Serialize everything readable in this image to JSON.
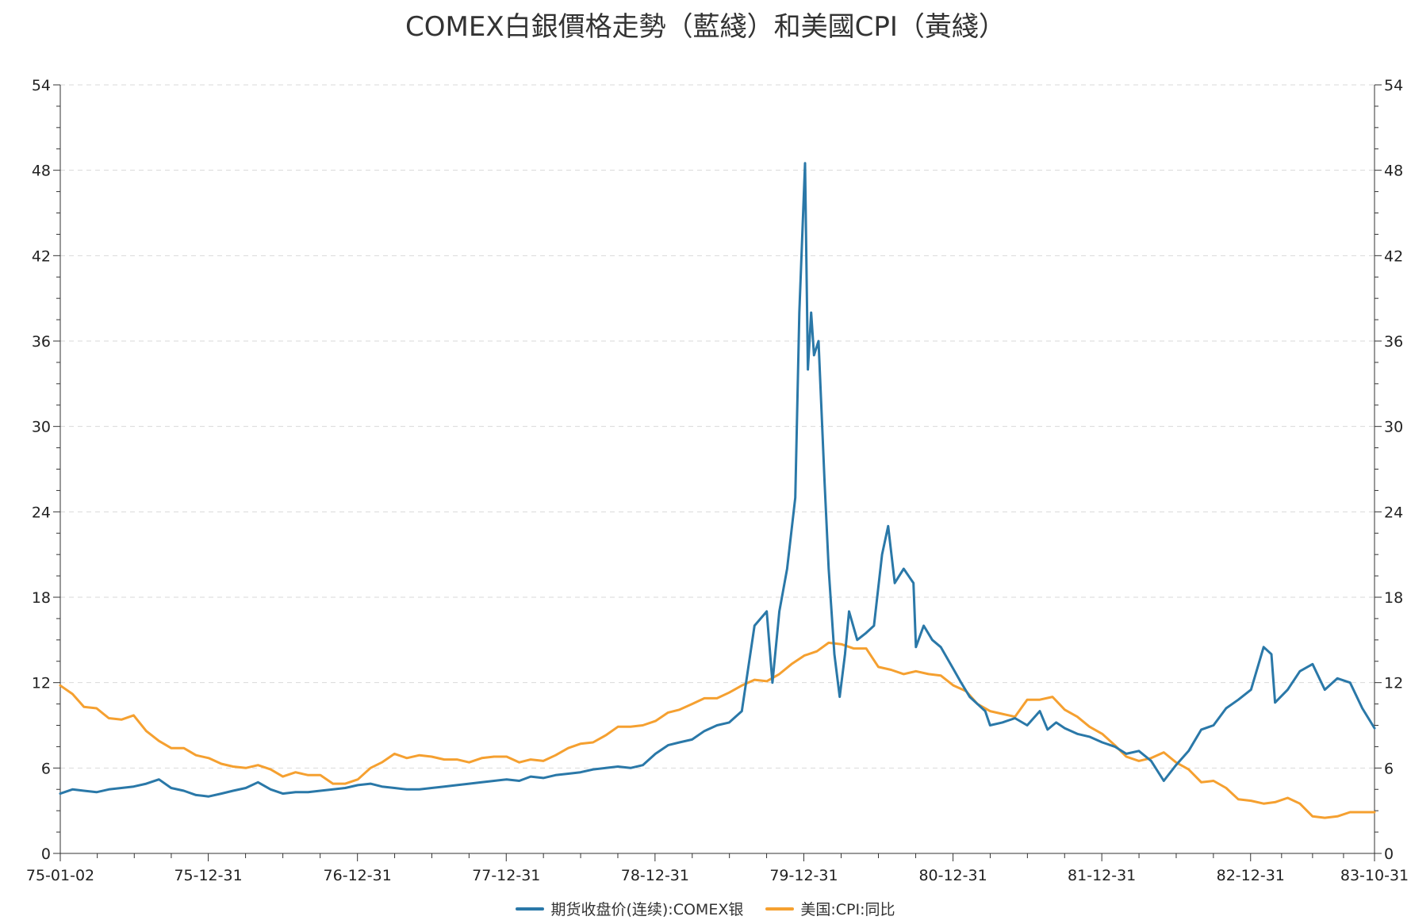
{
  "chart_data": {
    "type": "line",
    "title": "COMEX白銀價格走勢（藍綫）和美國CPI（黃綫）",
    "x_tick_labels": [
      "75-01-02",
      "75-12-31",
      "76-12-31",
      "77-12-31",
      "78-12-31",
      "79-12-31",
      "80-12-31",
      "81-12-31",
      "82-12-31",
      "83-10-31"
    ],
    "x_range": [
      "1975-01-02",
      "1983-10-31"
    ],
    "y_left": {
      "range": [
        0,
        54
      ],
      "ticks": [
        "0",
        "6",
        "12",
        "18",
        "24",
        "30",
        "36",
        "42",
        "48",
        "54"
      ]
    },
    "y_right": {
      "range": [
        0,
        54
      ],
      "ticks": [
        "0",
        "6",
        "12",
        "18",
        "24",
        "30",
        "36",
        "42",
        "48",
        "54"
      ]
    },
    "grid": "horizontal dashed",
    "legend_position": "bottom-center",
    "series": [
      {
        "name": "期货收盘价(连续):COMEX银",
        "color": "#2a78a8",
        "axis": "left",
        "points": [
          [
            "1975-01-02",
            4.2
          ],
          [
            "1975-02-01",
            4.5
          ],
          [
            "1975-03-01",
            4.4
          ],
          [
            "1975-04-01",
            4.3
          ],
          [
            "1975-05-01",
            4.5
          ],
          [
            "1975-06-01",
            4.6
          ],
          [
            "1975-07-01",
            4.7
          ],
          [
            "1975-08-01",
            4.9
          ],
          [
            "1975-09-01",
            5.2
          ],
          [
            "1975-10-01",
            4.6
          ],
          [
            "1975-11-01",
            4.4
          ],
          [
            "1975-12-01",
            4.1
          ],
          [
            "1976-01-01",
            4.0
          ],
          [
            "1976-02-01",
            4.2
          ],
          [
            "1976-03-01",
            4.4
          ],
          [
            "1976-04-01",
            4.6
          ],
          [
            "1976-05-01",
            5.0
          ],
          [
            "1976-06-01",
            4.5
          ],
          [
            "1976-07-01",
            4.2
          ],
          [
            "1976-08-01",
            4.3
          ],
          [
            "1976-09-01",
            4.3
          ],
          [
            "1976-10-01",
            4.4
          ],
          [
            "1976-11-01",
            4.5
          ],
          [
            "1976-12-01",
            4.6
          ],
          [
            "1977-01-01",
            4.8
          ],
          [
            "1977-02-01",
            4.9
          ],
          [
            "1977-03-01",
            4.7
          ],
          [
            "1977-04-01",
            4.6
          ],
          [
            "1977-05-01",
            4.5
          ],
          [
            "1977-06-01",
            4.5
          ],
          [
            "1977-07-01",
            4.6
          ],
          [
            "1977-08-01",
            4.7
          ],
          [
            "1977-09-01",
            4.8
          ],
          [
            "1977-10-01",
            4.9
          ],
          [
            "1977-11-01",
            5.0
          ],
          [
            "1977-12-01",
            5.1
          ],
          [
            "1978-01-01",
            5.2
          ],
          [
            "1978-02-01",
            5.1
          ],
          [
            "1978-03-01",
            5.4
          ],
          [
            "1978-04-01",
            5.3
          ],
          [
            "1978-05-01",
            5.5
          ],
          [
            "1978-06-01",
            5.6
          ],
          [
            "1978-07-01",
            5.7
          ],
          [
            "1978-08-01",
            5.9
          ],
          [
            "1978-09-01",
            6.0
          ],
          [
            "1978-10-01",
            6.1
          ],
          [
            "1978-11-01",
            6.0
          ],
          [
            "1978-12-01",
            6.2
          ],
          [
            "1979-01-01",
            7.0
          ],
          [
            "1979-02-01",
            7.6
          ],
          [
            "1979-03-01",
            7.8
          ],
          [
            "1979-04-01",
            8.0
          ],
          [
            "1979-05-01",
            8.6
          ],
          [
            "1979-06-01",
            9.0
          ],
          [
            "1979-07-01",
            9.2
          ],
          [
            "1979-08-01",
            10.0
          ],
          [
            "1979-09-01",
            16.0
          ],
          [
            "1979-10-01",
            17.0
          ],
          [
            "1979-10-15",
            12.0
          ],
          [
            "1979-11-01",
            17.0
          ],
          [
            "1979-11-20",
            20.0
          ],
          [
            "1979-12-10",
            25.0
          ],
          [
            "1979-12-20",
            38.0
          ],
          [
            "1980-01-03",
            48.5
          ],
          [
            "1980-01-10",
            34.0
          ],
          [
            "1980-01-18",
            38.0
          ],
          [
            "1980-01-25",
            35.0
          ],
          [
            "1980-02-05",
            36.0
          ],
          [
            "1980-02-20",
            26.0
          ],
          [
            "1980-03-01",
            20.0
          ],
          [
            "1980-03-15",
            14.0
          ],
          [
            "1980-03-28",
            11.0
          ],
          [
            "1980-04-10",
            14.0
          ],
          [
            "1980-04-20",
            17.0
          ],
          [
            "1980-05-10",
            15.0
          ],
          [
            "1980-06-01",
            15.5
          ],
          [
            "1980-06-20",
            16.0
          ],
          [
            "1980-07-10",
            21.0
          ],
          [
            "1980-07-25",
            23.0
          ],
          [
            "1980-08-10",
            19.0
          ],
          [
            "1980-09-01",
            20.0
          ],
          [
            "1980-09-25",
            19.0
          ],
          [
            "1980-10-01",
            14.5
          ],
          [
            "1980-10-20",
            16.0
          ],
          [
            "1980-11-10",
            15.0
          ],
          [
            "1980-12-01",
            14.5
          ],
          [
            "1980-12-31",
            13.0
          ],
          [
            "1981-01-20",
            12.0
          ],
          [
            "1981-02-10",
            11.0
          ],
          [
            "1981-03-01",
            10.5
          ],
          [
            "1981-03-20",
            10.0
          ],
          [
            "1981-04-01",
            9.0
          ],
          [
            "1981-05-01",
            9.2
          ],
          [
            "1981-06-01",
            9.5
          ],
          [
            "1981-07-01",
            9.0
          ],
          [
            "1981-08-01",
            10.0
          ],
          [
            "1981-08-20",
            8.7
          ],
          [
            "1981-09-10",
            9.2
          ],
          [
            "1981-10-01",
            8.8
          ],
          [
            "1981-11-01",
            8.4
          ],
          [
            "1981-12-01",
            8.2
          ],
          [
            "1982-01-01",
            7.8
          ],
          [
            "1982-02-01",
            7.5
          ],
          [
            "1982-03-01",
            7.0
          ],
          [
            "1982-04-01",
            7.2
          ],
          [
            "1982-05-01",
            6.5
          ],
          [
            "1982-06-01",
            5.1
          ],
          [
            "1982-07-01",
            6.2
          ],
          [
            "1982-08-01",
            7.2
          ],
          [
            "1982-09-01",
            8.7
          ],
          [
            "1982-10-01",
            9.0
          ],
          [
            "1982-11-01",
            10.2
          ],
          [
            "1982-12-01",
            10.8
          ],
          [
            "1983-01-01",
            11.5
          ],
          [
            "1983-02-01",
            14.5
          ],
          [
            "1983-02-20",
            14.0
          ],
          [
            "1983-03-01",
            10.6
          ],
          [
            "1983-04-01",
            11.5
          ],
          [
            "1983-05-01",
            12.8
          ],
          [
            "1983-06-01",
            13.3
          ],
          [
            "1983-07-01",
            11.5
          ],
          [
            "1983-08-01",
            12.3
          ],
          [
            "1983-09-01",
            12.0
          ],
          [
            "1983-10-01",
            10.2
          ],
          [
            "1983-10-31",
            8.8
          ]
        ]
      },
      {
        "name": "美国:CPI:同比",
        "color": "#f5a030",
        "axis": "right",
        "points": [
          [
            "1975-01-02",
            11.8
          ],
          [
            "1975-02-01",
            11.2
          ],
          [
            "1975-03-01",
            10.3
          ],
          [
            "1975-04-01",
            10.2
          ],
          [
            "1975-05-01",
            9.5
          ],
          [
            "1975-06-01",
            9.4
          ],
          [
            "1975-07-01",
            9.7
          ],
          [
            "1975-08-01",
            8.6
          ],
          [
            "1975-09-01",
            7.9
          ],
          [
            "1975-10-01",
            7.4
          ],
          [
            "1975-11-01",
            7.4
          ],
          [
            "1975-12-01",
            6.9
          ],
          [
            "1976-01-01",
            6.7
          ],
          [
            "1976-02-01",
            6.3
          ],
          [
            "1976-03-01",
            6.1
          ],
          [
            "1976-04-01",
            6.0
          ],
          [
            "1976-05-01",
            6.2
          ],
          [
            "1976-06-01",
            5.9
          ],
          [
            "1976-07-01",
            5.4
          ],
          [
            "1976-08-01",
            5.7
          ],
          [
            "1976-09-01",
            5.5
          ],
          [
            "1976-10-01",
            5.5
          ],
          [
            "1976-11-01",
            4.9
          ],
          [
            "1976-12-01",
            4.9
          ],
          [
            "1977-01-01",
            5.2
          ],
          [
            "1977-02-01",
            6.0
          ],
          [
            "1977-03-01",
            6.4
          ],
          [
            "1977-04-01",
            7.0
          ],
          [
            "1977-05-01",
            6.7
          ],
          [
            "1977-06-01",
            6.9
          ],
          [
            "1977-07-01",
            6.8
          ],
          [
            "1977-08-01",
            6.6
          ],
          [
            "1977-09-01",
            6.6
          ],
          [
            "1977-10-01",
            6.4
          ],
          [
            "1977-11-01",
            6.7
          ],
          [
            "1977-12-01",
            6.8
          ],
          [
            "1978-01-01",
            6.8
          ],
          [
            "1978-02-01",
            6.4
          ],
          [
            "1978-03-01",
            6.6
          ],
          [
            "1978-04-01",
            6.5
          ],
          [
            "1978-05-01",
            6.9
          ],
          [
            "1978-06-01",
            7.4
          ],
          [
            "1978-07-01",
            7.7
          ],
          [
            "1978-08-01",
            7.8
          ],
          [
            "1978-09-01",
            8.3
          ],
          [
            "1978-10-01",
            8.9
          ],
          [
            "1978-11-01",
            8.9
          ],
          [
            "1978-12-01",
            9.0
          ],
          [
            "1979-01-01",
            9.3
          ],
          [
            "1979-02-01",
            9.9
          ],
          [
            "1979-03-01",
            10.1
          ],
          [
            "1979-04-01",
            10.5
          ],
          [
            "1979-05-01",
            10.9
          ],
          [
            "1979-06-01",
            10.9
          ],
          [
            "1979-07-01",
            11.3
          ],
          [
            "1979-08-01",
            11.8
          ],
          [
            "1979-09-01",
            12.2
          ],
          [
            "1979-10-01",
            12.1
          ],
          [
            "1979-11-01",
            12.6
          ],
          [
            "1979-12-01",
            13.3
          ],
          [
            "1980-01-01",
            13.9
          ],
          [
            "1980-02-01",
            14.2
          ],
          [
            "1980-03-01",
            14.8
          ],
          [
            "1980-04-01",
            14.7
          ],
          [
            "1980-05-01",
            14.4
          ],
          [
            "1980-06-01",
            14.4
          ],
          [
            "1980-07-01",
            13.1
          ],
          [
            "1980-08-01",
            12.9
          ],
          [
            "1980-09-01",
            12.6
          ],
          [
            "1980-10-01",
            12.8
          ],
          [
            "1980-11-01",
            12.6
          ],
          [
            "1980-12-01",
            12.5
          ],
          [
            "1981-01-01",
            11.8
          ],
          [
            "1981-02-01",
            11.4
          ],
          [
            "1981-03-01",
            10.5
          ],
          [
            "1981-04-01",
            10.0
          ],
          [
            "1981-05-01",
            9.8
          ],
          [
            "1981-06-01",
            9.6
          ],
          [
            "1981-07-01",
            10.8
          ],
          [
            "1981-08-01",
            10.8
          ],
          [
            "1981-09-01",
            11.0
          ],
          [
            "1981-10-01",
            10.1
          ],
          [
            "1981-11-01",
            9.6
          ],
          [
            "1981-12-01",
            8.9
          ],
          [
            "1982-01-01",
            8.4
          ],
          [
            "1982-02-01",
            7.6
          ],
          [
            "1982-03-01",
            6.8
          ],
          [
            "1982-04-01",
            6.5
          ],
          [
            "1982-05-01",
            6.7
          ],
          [
            "1982-06-01",
            7.1
          ],
          [
            "1982-07-01",
            6.4
          ],
          [
            "1982-08-01",
            5.9
          ],
          [
            "1982-09-01",
            5.0
          ],
          [
            "1982-10-01",
            5.1
          ],
          [
            "1982-11-01",
            4.6
          ],
          [
            "1982-12-01",
            3.8
          ],
          [
            "1983-01-01",
            3.7
          ],
          [
            "1983-02-01",
            3.5
          ],
          [
            "1983-03-01",
            3.6
          ],
          [
            "1983-04-01",
            3.9
          ],
          [
            "1983-05-01",
            3.5
          ],
          [
            "1983-06-01",
            2.6
          ],
          [
            "1983-07-01",
            2.5
          ],
          [
            "1983-08-01",
            2.6
          ],
          [
            "1983-09-01",
            2.9
          ],
          [
            "1983-10-31",
            2.9
          ]
        ]
      }
    ]
  }
}
